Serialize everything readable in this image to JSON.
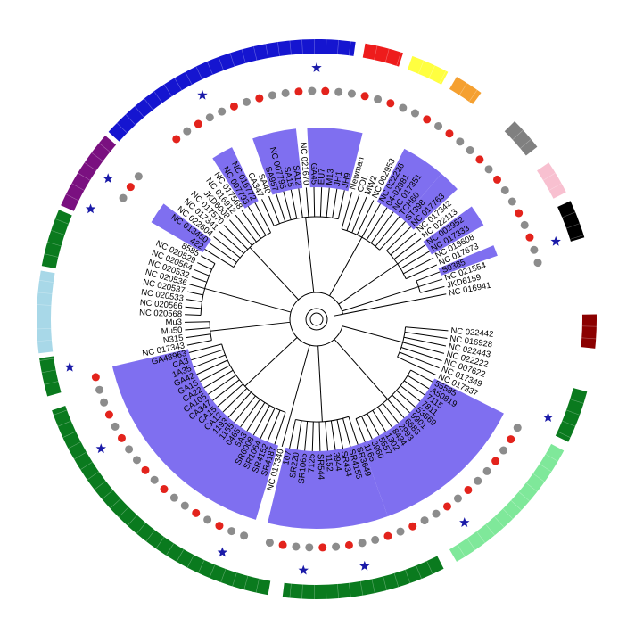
{
  "tree": {
    "leaves": [
      "NC 022442",
      "NC 016928",
      "NC 022443",
      "NC 022222",
      "NC 007622",
      "NC 017349",
      "NC 017337",
      "55585",
      "A50819",
      "7115",
      "7811",
      "53569",
      "9901",
      "6683",
      "2993",
      "8434",
      "1302",
      "5557",
      "3960",
      "1165",
      "SR3649",
      "SR4155",
      "SR434",
      "3944",
      "1152",
      "SR544",
      "7125",
      "SR1065",
      "SR220",
      "107",
      "NC 017340",
      "SR4187",
      "SR4152",
      "SR1064",
      "SR6008",
      "5A3",
      "0465",
      "1155",
      "1193",
      "CA12",
      "CA15",
      "CA347",
      "CA105",
      "CA22",
      "GA15",
      "GA42",
      "1A35",
      "CA3",
      "GA48963",
      "NC 017343",
      "N315",
      "Mu50",
      "Mu3",
      "NC 020568",
      "NC 020566",
      "NC 020533",
      "NC 020537",
      "NC 020536",
      "NC 020532",
      "NC 020564",
      "NC 020529",
      "8585",
      "422",
      "NC 013450",
      "NC 022604",
      "NC 017341",
      "NC 017570",
      "JKD6008",
      "NC 016912",
      "NC 017568",
      "NC 007793",
      "NC 016772",
      "CA347",
      "SA40",
      "SA957",
      "NC 007795",
      "SA15",
      "SA12",
      "NC 021670",
      "GA45",
      "EU7",
      "M13",
      "JH1",
      "JH9",
      "Newman",
      "COL",
      "MW2",
      "NC 002953",
      "NC 022226",
      "04-02981",
      "NC 017351",
      "TCH60",
      "ST398",
      "NC 017763",
      "NC 017342",
      "NC 022113",
      "NC 002952",
      "NC 017333",
      "NC 018608",
      "NC 017673",
      "S0385",
      "NC 021554",
      "JKD6159",
      "NC 016941"
    ]
  }
}
